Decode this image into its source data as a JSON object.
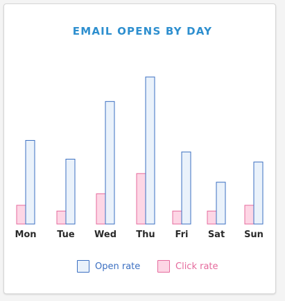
{
  "chart_data": {
    "type": "bar",
    "title": "EMAIL OPENS BY DAY",
    "categories": [
      "Mon",
      "Tue",
      "Wed",
      "Thu",
      "Fri",
      "Sat",
      "Sun"
    ],
    "series": [
      {
        "name": "Click rate",
        "values": [
          13,
          9,
          21,
          35,
          9,
          9,
          13
        ],
        "fill": "#fdd6e5",
        "stroke": "#e56a9c"
      },
      {
        "name": "Open rate",
        "values": [
          58,
          45,
          85,
          102,
          50,
          29,
          43
        ],
        "fill": "#eaf2fb",
        "stroke": "#3b6fc1"
      }
    ],
    "ylim": [
      0,
      102
    ],
    "grid": false,
    "legend_position": "bottom",
    "colors": {
      "title": "#2e8fcf",
      "open_rate_label": "#3b6fc1",
      "click_rate_label": "#e56a9c",
      "axis_label": "#2a2a2a"
    }
  }
}
